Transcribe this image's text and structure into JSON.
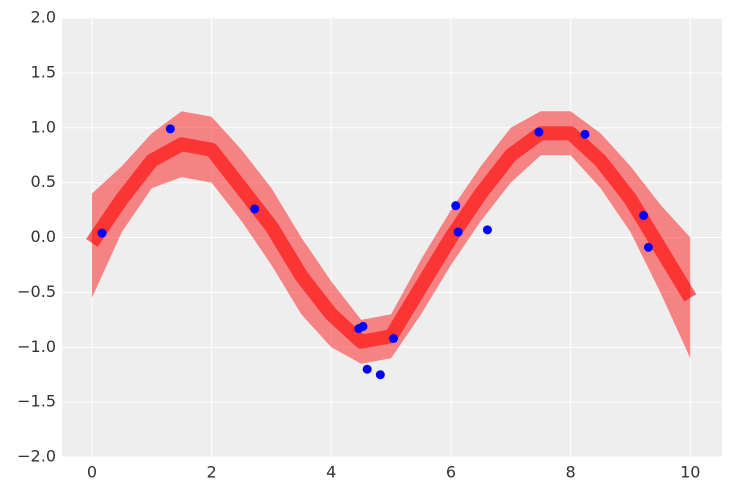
{
  "chart_data": {
    "type": "scatter",
    "x": [
      0.17,
      1.31,
      2.72,
      4.46,
      4.53,
      4.6,
      4.82,
      5.04,
      6.08,
      6.12,
      6.61,
      7.47,
      8.24,
      9.22,
      9.3
    ],
    "values": [
      0.04,
      0.99,
      0.26,
      -0.83,
      -0.81,
      -1.2,
      -1.25,
      -0.92,
      0.29,
      0.05,
      0.07,
      0.96,
      0.94,
      0.2,
      -0.09
    ],
    "color": "#0000ff",
    "band": {
      "color": "#ff0000",
      "x": [
        0,
        0.5,
        1,
        1.5,
        2,
        2.5,
        3,
        3.5,
        4,
        4.5,
        5,
        5.5,
        6,
        6.5,
        7,
        7.5,
        8,
        8.5,
        9,
        9.5,
        10
      ],
      "center": [
        -0.05,
        0.35,
        0.7,
        0.85,
        0.8,
        0.45,
        0.1,
        -0.35,
        -0.7,
        -0.95,
        -0.9,
        -0.45,
        0.0,
        0.4,
        0.75,
        0.95,
        0.95,
        0.7,
        0.35,
        -0.1,
        -0.55
      ],
      "upper": [
        0.4,
        0.65,
        0.95,
        1.15,
        1.1,
        0.8,
        0.45,
        0.0,
        -0.4,
        -0.75,
        -0.7,
        -0.2,
        0.25,
        0.65,
        1.0,
        1.15,
        1.15,
        0.95,
        0.65,
        0.3,
        0.0
      ],
      "lower": [
        -0.55,
        0.05,
        0.45,
        0.55,
        0.5,
        0.15,
        -0.25,
        -0.7,
        -1.0,
        -1.15,
        -1.1,
        -0.7,
        -0.25,
        0.15,
        0.5,
        0.75,
        0.75,
        0.45,
        0.05,
        -0.5,
        -1.1
      ]
    },
    "xlim": [
      -0.5,
      10.53
    ],
    "ylim": [
      -2,
      2
    ],
    "xticks": [
      0,
      2,
      4,
      6,
      8,
      10
    ],
    "yticks": [
      {
        "value": -2,
        "label": "−2.0"
      },
      {
        "value": -1.5,
        "label": "−1.5"
      },
      {
        "value": -1,
        "label": "−1.0"
      },
      {
        "value": -0.5,
        "label": "−0.5"
      },
      {
        "value": 0,
        "label": "0.0"
      },
      {
        "value": 0.5,
        "label": "0.5"
      },
      {
        "value": 1,
        "label": "1.0"
      },
      {
        "value": 1.5,
        "label": "1.5"
      },
      {
        "value": 2,
        "label": "2.0"
      }
    ],
    "grid": true
  }
}
